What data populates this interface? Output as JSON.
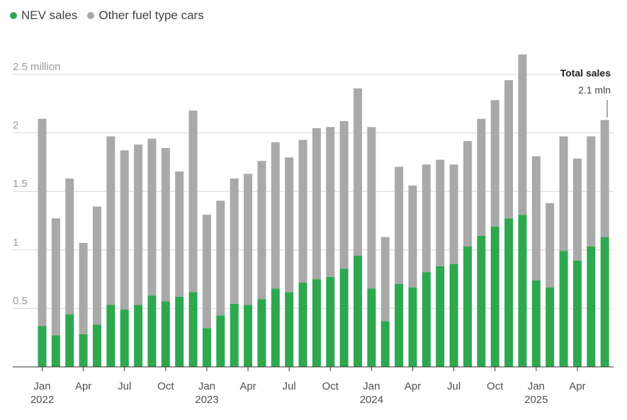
{
  "legend": [
    {
      "label": "NEV sales",
      "color": "#2ea84f"
    },
    {
      "label": "Other fuel type cars",
      "color": "#a9a9a9"
    }
  ],
  "annotation": {
    "title": "Total sales",
    "value": "2.1 mln"
  },
  "chart_data": {
    "type": "bar",
    "stacked": true,
    "ylim": [
      0,
      2.5
    ],
    "yticks": [
      {
        "value": 0.5,
        "label": "0.5"
      },
      {
        "value": 1,
        "label": "1"
      },
      {
        "value": 1.5,
        "label": "1.5"
      },
      {
        "value": 2,
        "label": "2"
      },
      {
        "value": 2.5,
        "label": "2.5 million"
      }
    ],
    "grid": true,
    "legend_position": "top-left",
    "categories": [
      "2022-01",
      "2022-02",
      "2022-03",
      "2022-04",
      "2022-05",
      "2022-06",
      "2022-07",
      "2022-08",
      "2022-09",
      "2022-10",
      "2022-11",
      "2022-12",
      "2023-01",
      "2023-02",
      "2023-03",
      "2023-04",
      "2023-05",
      "2023-06",
      "2023-07",
      "2023-08",
      "2023-09",
      "2023-10",
      "2023-11",
      "2023-12",
      "2024-01",
      "2024-02",
      "2024-03",
      "2024-04",
      "2024-05",
      "2024-06",
      "2024-07",
      "2024-08",
      "2024-09",
      "2024-10",
      "2024-11",
      "2024-12",
      "2025-01",
      "2025-02",
      "2025-03",
      "2025-04",
      "2025-05",
      "2025-06"
    ],
    "xtick_labels": [
      {
        "index": 0,
        "month": "Jan",
        "year": "2022"
      },
      {
        "index": 3,
        "month": "Apr",
        "year": ""
      },
      {
        "index": 6,
        "month": "Jul",
        "year": ""
      },
      {
        "index": 9,
        "month": "Oct",
        "year": ""
      },
      {
        "index": 12,
        "month": "Jan",
        "year": "2023"
      },
      {
        "index": 15,
        "month": "Apr",
        "year": ""
      },
      {
        "index": 18,
        "month": "Jul",
        "year": ""
      },
      {
        "index": 21,
        "month": "Oct",
        "year": ""
      },
      {
        "index": 24,
        "month": "Jan",
        "year": "2024"
      },
      {
        "index": 27,
        "month": "Apr",
        "year": ""
      },
      {
        "index": 30,
        "month": "Jul",
        "year": ""
      },
      {
        "index": 33,
        "month": "Oct",
        "year": ""
      },
      {
        "index": 36,
        "month": "Jan",
        "year": "2025"
      },
      {
        "index": 39,
        "month": "Apr",
        "year": ""
      }
    ],
    "series": [
      {
        "name": "NEV sales",
        "color": "#2ea84f",
        "values": [
          0.35,
          0.27,
          0.45,
          0.28,
          0.36,
          0.53,
          0.49,
          0.53,
          0.61,
          0.56,
          0.6,
          0.64,
          0.33,
          0.44,
          0.54,
          0.53,
          0.58,
          0.67,
          0.64,
          0.72,
          0.75,
          0.77,
          0.84,
          0.95,
          0.67,
          0.39,
          0.71,
          0.68,
          0.81,
          0.86,
          0.88,
          1.03,
          1.12,
          1.2,
          1.27,
          1.3,
          0.74,
          0.68,
          0.99,
          0.91,
          1.03,
          1.11
        ]
      },
      {
        "name": "Other fuel type cars",
        "color": "#a9a9a9",
        "values": [
          1.77,
          1.0,
          1.16,
          0.78,
          1.01,
          1.44,
          1.36,
          1.37,
          1.34,
          1.31,
          1.07,
          1.55,
          0.97,
          0.98,
          1.07,
          1.12,
          1.18,
          1.25,
          1.15,
          1.22,
          1.29,
          1.28,
          1.26,
          1.43,
          1.38,
          0.72,
          1.0,
          0.87,
          0.92,
          0.91,
          0.85,
          0.9,
          1.0,
          1.08,
          1.18,
          1.37,
          1.06,
          0.72,
          0.98,
          0.87,
          0.94,
          1.0
        ]
      }
    ]
  }
}
